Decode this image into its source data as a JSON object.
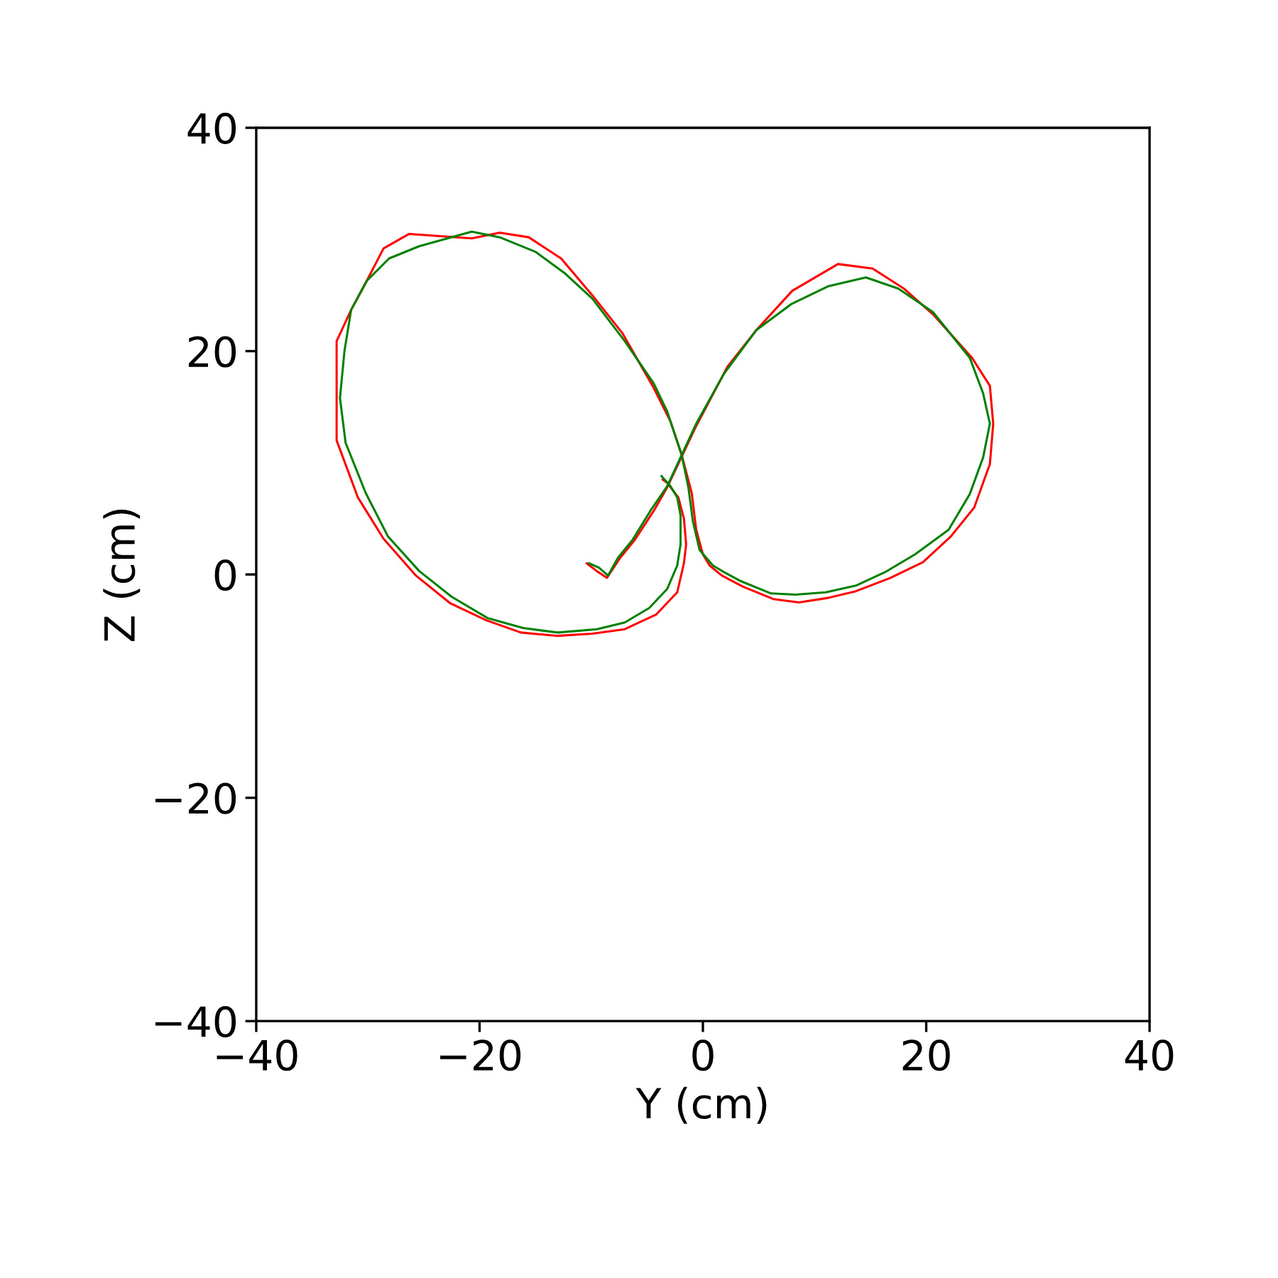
{
  "chart_data": {
    "type": "line",
    "xlabel": "Y (cm)",
    "ylabel": "Z (cm)",
    "xlim": [
      -40,
      40
    ],
    "ylim": [
      -40,
      40
    ],
    "xticks": [
      {
        "value": -40,
        "label": "−40"
      },
      {
        "value": -20,
        "label": "−20"
      },
      0,
      20,
      40
    ],
    "yticks": [
      {
        "value": -40,
        "label": "−40"
      },
      {
        "value": -20,
        "label": "−20"
      },
      0,
      20,
      40
    ],
    "grid": false,
    "series": [
      {
        "color": "#ff0000",
        "x": [
          -3.6,
          -3.2,
          -2.2,
          -1.7,
          -1.5,
          -1.7,
          -2.3,
          -4.2,
          -7.0,
          -9.9,
          -13.1,
          -16.3,
          -19.4,
          -22.6,
          -25.7,
          -28.6,
          -30.9,
          -32.8,
          -32.8,
          -32.8,
          -31.5,
          -30.1,
          -28.6,
          -26.3,
          -20.7,
          -18.2,
          -15.6,
          -12.7,
          -9.9,
          -7.2,
          -4.4,
          -2.9,
          -1.9,
          -1.0,
          -0.6,
          0.0,
          0.6,
          1.7,
          3.6,
          6.3,
          8.6,
          11.2,
          13.7,
          16.8,
          19.7,
          22.2,
          24.3,
          25.7,
          26.0,
          25.7,
          24.1,
          20.7,
          18.0,
          15.2,
          12.1,
          8.0,
          4.8,
          2.2,
          -0.6,
          -3.2,
          -4.4,
          -6.1,
          -7.4,
          -8.6,
          -9.5,
          -10.4
        ],
        "values": [
          8.5,
          8.2,
          6.9,
          5.0,
          2.7,
          1.0,
          -1.6,
          -3.6,
          -4.9,
          -5.3,
          -5.5,
          -5.2,
          -4.1,
          -2.6,
          -0.1,
          3.2,
          6.9,
          12.0,
          16.5,
          20.9,
          23.7,
          26.3,
          29.2,
          30.5,
          30.1,
          30.6,
          30.2,
          28.3,
          25.0,
          21.6,
          16.7,
          13.7,
          10.7,
          7.3,
          4.0,
          1.8,
          0.8,
          -0.1,
          -1.1,
          -2.2,
          -2.5,
          -2.1,
          -1.5,
          -0.3,
          1.1,
          3.4,
          6.0,
          9.9,
          13.5,
          16.9,
          19.4,
          23.2,
          25.6,
          27.4,
          27.8,
          25.4,
          21.9,
          18.6,
          13.3,
          7.8,
          5.7,
          3.1,
          1.5,
          -0.3,
          0.3,
          1.0
        ]
      },
      {
        "color": "#008000",
        "x": [
          -3.7,
          -2.9,
          -2.3,
          -2.0,
          -2.0,
          -2.3,
          -3.2,
          -4.8,
          -7.0,
          -9.5,
          -13.0,
          -16.1,
          -19.3,
          -22.5,
          -25.4,
          -28.2,
          -30.2,
          -32.0,
          -32.5,
          -32.1,
          -31.5,
          -30.1,
          -28.1,
          -25.4,
          -20.7,
          -18.2,
          -15.0,
          -12.4,
          -9.9,
          -7.0,
          -4.4,
          -3.2,
          -1.9,
          -1.3,
          -0.9,
          -0.3,
          0.9,
          1.9,
          3.4,
          6.1,
          8.3,
          11.0,
          13.7,
          16.3,
          19.0,
          22.0,
          23.9,
          25.1,
          25.7,
          25.1,
          23.9,
          20.6,
          17.5,
          14.6,
          11.2,
          7.9,
          4.8,
          1.9,
          -0.6,
          -3.2,
          -4.7,
          -6.3,
          -7.6,
          -8.5,
          -9.3,
          -10.2
        ],
        "values": [
          8.8,
          7.9,
          6.9,
          5.3,
          2.7,
          0.8,
          -1.3,
          -3.0,
          -4.3,
          -4.9,
          -5.2,
          -4.8,
          -3.9,
          -2.0,
          0.3,
          3.4,
          7.3,
          11.8,
          15.8,
          20.0,
          23.7,
          26.3,
          28.3,
          29.4,
          30.7,
          30.2,
          28.9,
          27.0,
          24.7,
          20.9,
          17.1,
          14.6,
          10.7,
          7.8,
          4.8,
          2.2,
          0.8,
          0.2,
          -0.6,
          -1.7,
          -1.8,
          -1.6,
          -1.0,
          0.2,
          1.8,
          4.0,
          7.2,
          10.5,
          13.5,
          16.2,
          19.4,
          23.5,
          25.6,
          26.6,
          25.8,
          24.2,
          21.9,
          18.0,
          13.5,
          7.9,
          5.7,
          3.1,
          1.5,
          -0.1,
          0.6,
          1.0
        ]
      }
    ]
  }
}
